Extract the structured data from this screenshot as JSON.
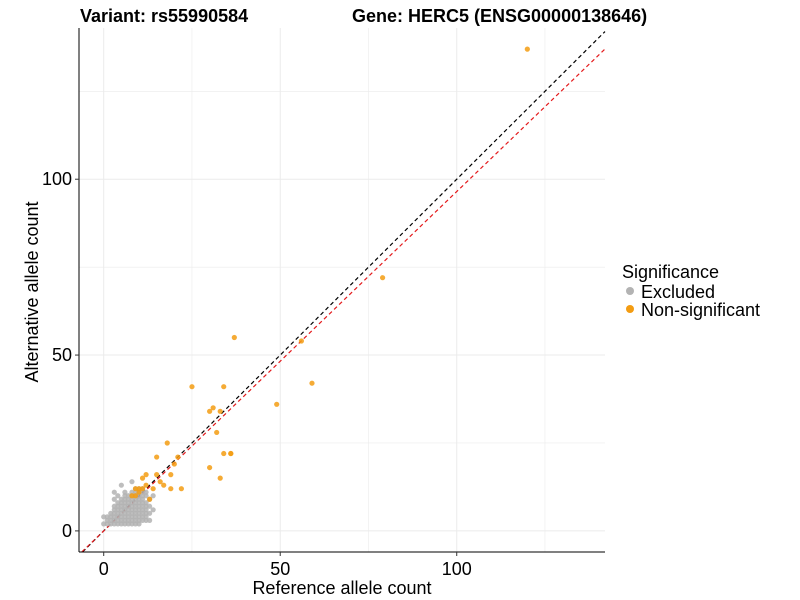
{
  "chart_data": {
    "type": "scatter",
    "title_left": "Variant: rs55990584",
    "title_right": "Gene: HERC5 (ENSG00000138646)",
    "xlabel": "Reference allele count",
    "ylabel": "Alternative allele count",
    "xlim": [
      -7,
      142
    ],
    "ylim": [
      -6,
      143
    ],
    "xticks": [
      0,
      50,
      100
    ],
    "yticks": [
      0,
      50,
      100
    ],
    "grid": true,
    "legend": {
      "title": "Significance",
      "position": "right",
      "entries": [
        {
          "label": "Excluded",
          "color": "#b3b3b3"
        },
        {
          "label": "Non-significant",
          "color": "#f39c12"
        }
      ]
    },
    "reference_lines": [
      {
        "name": "identity-line",
        "slope": 1,
        "intercept": 0,
        "color": "#000000",
        "style": "dashed"
      },
      {
        "name": "fit-line",
        "slope": 0.965,
        "intercept": 0,
        "color": "#e41a1c",
        "style": "dashed"
      }
    ],
    "series": [
      {
        "name": "Excluded",
        "color": "#b3b3b3",
        "x": [
          0,
          1,
          2,
          3,
          4,
          5,
          6,
          7,
          8,
          9,
          10,
          1,
          2,
          3,
          4,
          5,
          6,
          7,
          8,
          9,
          10,
          11,
          12,
          13,
          0,
          1,
          2,
          3,
          4,
          5,
          6,
          7,
          8,
          9,
          10,
          11,
          12,
          2,
          3,
          4,
          5,
          6,
          7,
          8,
          9,
          10,
          11,
          12,
          13,
          3,
          4,
          5,
          6,
          7,
          8,
          9,
          10,
          11,
          12,
          14,
          3,
          4,
          5,
          6,
          7,
          8,
          9,
          10,
          11,
          12,
          13,
          4,
          5,
          6,
          7,
          8,
          9,
          10,
          11,
          12,
          3,
          5,
          6,
          7,
          8,
          9,
          10,
          11,
          13,
          4,
          6,
          7,
          8,
          9,
          10,
          11,
          12,
          14,
          6,
          8,
          9,
          10,
          11,
          12,
          3,
          9,
          10,
          11,
          5,
          8
        ],
        "y": [
          2,
          2,
          2,
          2,
          2,
          2,
          2,
          2,
          2,
          2,
          2,
          3,
          3,
          3,
          3,
          3,
          3,
          3,
          3,
          3,
          3,
          3,
          3,
          3,
          4,
          4,
          4,
          4,
          4,
          4,
          4,
          4,
          4,
          4,
          4,
          4,
          4,
          5,
          5,
          5,
          5,
          5,
          5,
          5,
          5,
          5,
          5,
          5,
          5,
          6,
          6,
          6,
          6,
          6,
          6,
          6,
          6,
          6,
          6,
          6,
          7,
          7,
          7,
          7,
          7,
          7,
          7,
          7,
          7,
          7,
          7,
          8,
          8,
          8,
          8,
          8,
          8,
          8,
          8,
          8,
          9,
          9,
          9,
          9,
          9,
          9,
          9,
          9,
          9,
          10,
          10,
          10,
          10,
          10,
          10,
          10,
          10,
          10,
          11,
          11,
          11,
          11,
          11,
          11,
          11,
          12,
          12,
          12,
          13,
          14
        ]
      },
      {
        "name": "Non-significant",
        "color": "#f39c12",
        "x": [
          120,
          79,
          56,
          37,
          59,
          49,
          25,
          34,
          33,
          36,
          31,
          30,
          32,
          21,
          18,
          30,
          34,
          33,
          36,
          19,
          15,
          17,
          22,
          20,
          14,
          16,
          12,
          11,
          10,
          9,
          13,
          15,
          19,
          11,
          10,
          8,
          9,
          12
        ],
        "y": [
          137,
          72,
          54,
          55,
          42,
          36,
          41,
          41,
          34,
          22,
          35,
          34,
          28,
          21,
          25,
          18,
          22,
          15,
          22,
          16,
          21,
          13,
          12,
          19,
          12,
          14,
          16,
          12,
          11,
          10,
          9,
          16,
          12,
          15,
          12,
          10,
          12,
          13
        ]
      }
    ]
  }
}
